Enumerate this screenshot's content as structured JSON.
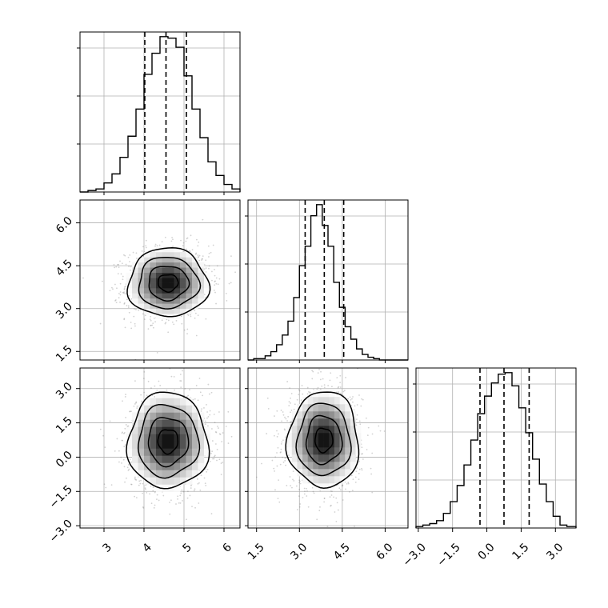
{
  "chart_data": {
    "type": "corner",
    "title": "",
    "colors": {
      "lines": "#000000",
      "grid": "#b0b0b0",
      "scatter": "#7f7f7f",
      "background": "#ffffff"
    },
    "grid": true,
    "parameters": [
      {
        "index": 0,
        "range": [
          2.4,
          6.4
        ],
        "tick_values": [
          3,
          4,
          5,
          6
        ],
        "tick_labels": [
          "3",
          "4",
          "5",
          "6"
        ],
        "quantiles": [
          4.02,
          4.55,
          5.06
        ],
        "histogram": {
          "edges": [
            2.4,
            2.6,
            2.8,
            3.0,
            3.2,
            3.4,
            3.6,
            3.8,
            4.0,
            4.2,
            4.4,
            4.6,
            4.8,
            5.0,
            5.2,
            5.4,
            5.6,
            5.8,
            6.0,
            6.2,
            6.4
          ],
          "counts": [
            0,
            1,
            2,
            6,
            12,
            23,
            37,
            55,
            78,
            92,
            103,
            102,
            96,
            77,
            55,
            36,
            20,
            11,
            5,
            2
          ]
        }
      },
      {
        "index": 1,
        "range": [
          1.2,
          6.8
        ],
        "tick_values": [
          1.5,
          3.0,
          4.5,
          6.0
        ],
        "tick_labels": [
          "1.5",
          "3.0",
          "4.5",
          "6.0"
        ],
        "quantiles": [
          3.2,
          3.87,
          4.55
        ],
        "histogram": {
          "edges": [
            1.2,
            1.4,
            1.6,
            1.8,
            2.0,
            2.2,
            2.4,
            2.6,
            2.8,
            3.0,
            3.2,
            3.4,
            3.6,
            3.8,
            4.0,
            4.2,
            4.4,
            4.6,
            4.8,
            5.0,
            5.2,
            5.4,
            5.6,
            5.8,
            6.0,
            6.2,
            6.4,
            6.6,
            6.8
          ],
          "counts": [
            0,
            1,
            1,
            3,
            6,
            11,
            18,
            28,
            45,
            68,
            82,
            104,
            112,
            97,
            82,
            56,
            38,
            24,
            15,
            8,
            4,
            2,
            1,
            0,
            0,
            0,
            0,
            0
          ]
        }
      },
      {
        "index": 2,
        "range": [
          -3.1,
          3.9
        ],
        "tick_values": [
          -3.0,
          -1.5,
          0.0,
          1.5,
          3.0
        ],
        "tick_labels": [
          "−3.0",
          "−1.5",
          "0.0",
          "1.5",
          "3.0"
        ],
        "quantiles": [
          -0.3,
          0.75,
          1.85
        ],
        "histogram": {
          "edges": [
            -3.1,
            -2.8,
            -2.5,
            -2.2,
            -1.9,
            -1.6,
            -1.3,
            -1.0,
            -0.7,
            -0.4,
            -0.1,
            0.2,
            0.5,
            0.8,
            1.1,
            1.4,
            1.7,
            2.0,
            2.3,
            2.6,
            2.9,
            3.2,
            3.5,
            3.9
          ],
          "counts": [
            1,
            2,
            3,
            5,
            10,
            18,
            29,
            43,
            60,
            78,
            90,
            99,
            105,
            106,
            97,
            82,
            65,
            47,
            30,
            18,
            8,
            2,
            1
          ]
        }
      }
    ],
    "panels_2d": [
      {
        "x": 0,
        "y": 1,
        "mean": [
          4.6,
          3.9
        ],
        "sd": [
          0.5,
          0.6
        ],
        "rho": 0.05
      },
      {
        "x": 0,
        "y": 2,
        "mean": [
          4.6,
          0.7
        ],
        "sd": [
          0.5,
          1.05
        ],
        "rho": 0.0
      },
      {
        "x": 1,
        "y": 2,
        "mean": [
          3.85,
          0.75
        ],
        "sd": [
          0.62,
          1.05
        ],
        "rho": 0.0
      }
    ]
  }
}
